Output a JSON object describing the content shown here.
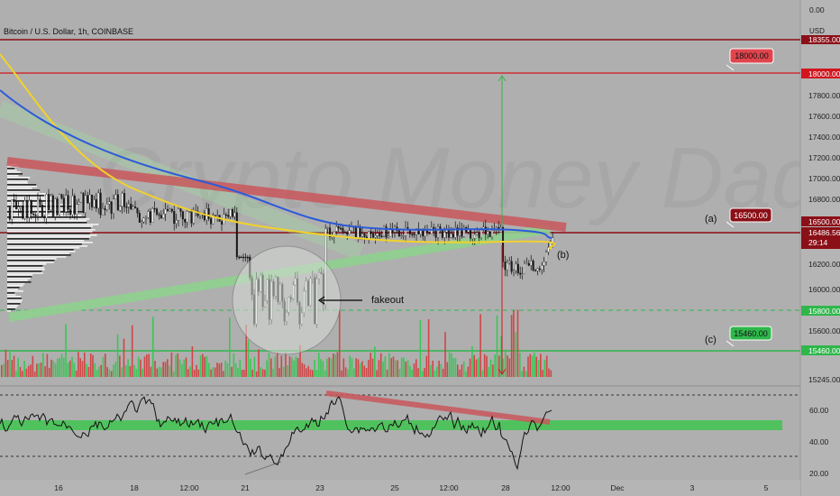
{
  "colors": {
    "background": "#afafaf",
    "axis_panel": "#b5b5b5",
    "candle_up": "#ffffff",
    "candle_down": "#1a1a1a",
    "volume_up": "#2fc94d",
    "volume_down": "#d33b3b",
    "ma_blue": "#2b5bd8",
    "ma_yellow": "#f2d22a",
    "resistance": "#c9575c",
    "support": "#7cc97c",
    "level_red": "#d2161f",
    "level_green": "#2fb74b",
    "price_tag": "#8b0f17"
  },
  "header": {
    "title": "Bitcoin / U.S. Dollar, 1h, COINBASE"
  },
  "watermark": "Crypto Money Daddy",
  "price_axis": {
    "currency": "USD",
    "ticks": [
      "18355.00",
      "17800.00",
      "17600.00",
      "17400.00",
      "17200.00",
      "17000.00",
      "16800.00",
      "16200.00",
      "16000.00",
      "15600.00",
      "15245.00"
    ],
    "top_tick": "0.00",
    "level_18355": "18355.00",
    "current_price": "16486.56",
    "countdown": "29:14"
  },
  "rsi_axis": {
    "ticks": [
      "60.00",
      "40.00",
      "20.00"
    ]
  },
  "time_axis": {
    "labels": [
      "16",
      "18",
      "12:00",
      "21",
      "23",
      "25",
      "12:00",
      "28",
      "12:00",
      "Dec",
      "3",
      "5"
    ]
  },
  "levels": [
    {
      "price": "18000.00",
      "name": "level-18000",
      "tag": "18000.00",
      "axis": "18000.00",
      "color": "red"
    },
    {
      "price": "16500.00",
      "name": "level-16500",
      "tag": "16500.00",
      "axis": "16500.00",
      "color": "red",
      "label": "(a)"
    },
    {
      "price": "15800.00",
      "name": "level-15800",
      "axis": "15800.00",
      "color": "green"
    },
    {
      "price": "15460.00",
      "name": "level-15460",
      "tag": "15460.00",
      "axis": "15460.00",
      "color": "green",
      "label": "(c)"
    }
  ],
  "annotations": {
    "fakeout": "fakeout",
    "b": "(b)"
  }
}
